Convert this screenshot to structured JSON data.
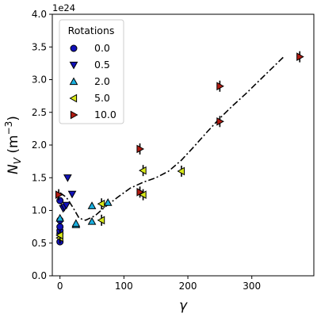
{
  "chart_data": {
    "type": "scatter",
    "title": "",
    "xlabel": "γ",
    "ylabel_main": "N",
    "ylabel_sub": "V",
    "ylabel_unit": " (m",
    "ylabel_exp": "−3",
    "ylabel_close": ")",
    "y_multiplier": "1e24",
    "xlim": [
      -12,
      397
    ],
    "ylim": [
      0,
      4.0
    ],
    "x_ticks": [
      0,
      100,
      200,
      300
    ],
    "y_ticks": [
      0.0,
      0.5,
      1.0,
      1.5,
      2.0,
      2.5,
      3.0,
      3.5,
      4.0
    ],
    "y_tick_labels": [
      "0.0",
      "0.5",
      "1.0",
      "1.5",
      "2.0",
      "2.5",
      "3.0",
      "3.5",
      "4.0"
    ],
    "grid": false,
    "legend": {
      "title": "Rotations",
      "placement": "top-left",
      "entries": [
        "0.0",
        "0.5",
        "2.0",
        "5.0",
        "10.0"
      ]
    },
    "series": [
      {
        "name": "0.0",
        "marker": "circle",
        "color": "#1111b8",
        "points": [
          {
            "x": 0,
            "y": 0.52
          },
          {
            "x": 0,
            "y": 0.65
          },
          {
            "x": 0,
            "y": 0.69
          },
          {
            "x": 0,
            "y": 0.75
          },
          {
            "x": 0,
            "y": 0.85
          },
          {
            "x": 0,
            "y": 1.15
          }
        ]
      },
      {
        "name": "0.5",
        "marker": "triangle-down",
        "color": "#1111b8",
        "points": [
          {
            "x": 5,
            "y": 1.03
          },
          {
            "x": 7,
            "y": 1.05
          },
          {
            "x": 10,
            "y": 1.08
          },
          {
            "x": 12,
            "y": 1.5
          },
          {
            "x": 19,
            "y": 1.25
          }
        ]
      },
      {
        "name": "2.0",
        "marker": "triangle-up",
        "color": "#1ab0e0",
        "points": [
          {
            "x": 0,
            "y": 0.88
          },
          {
            "x": 25,
            "y": 0.78
          },
          {
            "x": 25,
            "y": 0.8
          },
          {
            "x": 50,
            "y": 0.83
          },
          {
            "x": 50,
            "y": 1.07
          },
          {
            "x": 75,
            "y": 1.12
          }
        ]
      },
      {
        "name": "5.0",
        "marker": "triangle-left",
        "color": "#d8e81a",
        "points": [
          {
            "x": 0,
            "y": 0.58
          },
          {
            "x": 0,
            "y": 0.62
          },
          {
            "x": 65,
            "y": 0.85
          },
          {
            "x": 65,
            "y": 1.1
          },
          {
            "x": 130,
            "y": 1.24
          },
          {
            "x": 130,
            "y": 1.61
          },
          {
            "x": 190,
            "y": 1.6
          }
        ],
        "error_bars": true
      },
      {
        "name": "10.0",
        "marker": "triangle-right",
        "color": "#b01a10",
        "points": [
          {
            "x": -2,
            "y": 1.24
          },
          {
            "x": 125,
            "y": 1.28
          },
          {
            "x": 125,
            "y": 1.94
          },
          {
            "x": 250,
            "y": 2.36
          },
          {
            "x": 250,
            "y": 2.9
          },
          {
            "x": 375,
            "y": 3.35
          }
        ],
        "error_bars": true
      }
    ],
    "fit_curve": {
      "style": "dash-dot",
      "color": "#000000",
      "points": [
        {
          "x": 0,
          "y": 1.27
        },
        {
          "x": 10,
          "y": 1.2
        },
        {
          "x": 20,
          "y": 1.05
        },
        {
          "x": 30,
          "y": 0.88
        },
        {
          "x": 40,
          "y": 0.85
        },
        {
          "x": 55,
          "y": 0.92
        },
        {
          "x": 70,
          "y": 1.05
        },
        {
          "x": 90,
          "y": 1.2
        },
        {
          "x": 110,
          "y": 1.34
        },
        {
          "x": 130,
          "y": 1.43
        },
        {
          "x": 150,
          "y": 1.5
        },
        {
          "x": 170,
          "y": 1.6
        },
        {
          "x": 190,
          "y": 1.77
        },
        {
          "x": 210,
          "y": 1.98
        },
        {
          "x": 230,
          "y": 2.2
        },
        {
          "x": 250,
          "y": 2.41
        },
        {
          "x": 270,
          "y": 2.6
        },
        {
          "x": 290,
          "y": 2.78
        },
        {
          "x": 310,
          "y": 2.97
        },
        {
          "x": 330,
          "y": 3.16
        },
        {
          "x": 350,
          "y": 3.35
        }
      ]
    }
  }
}
